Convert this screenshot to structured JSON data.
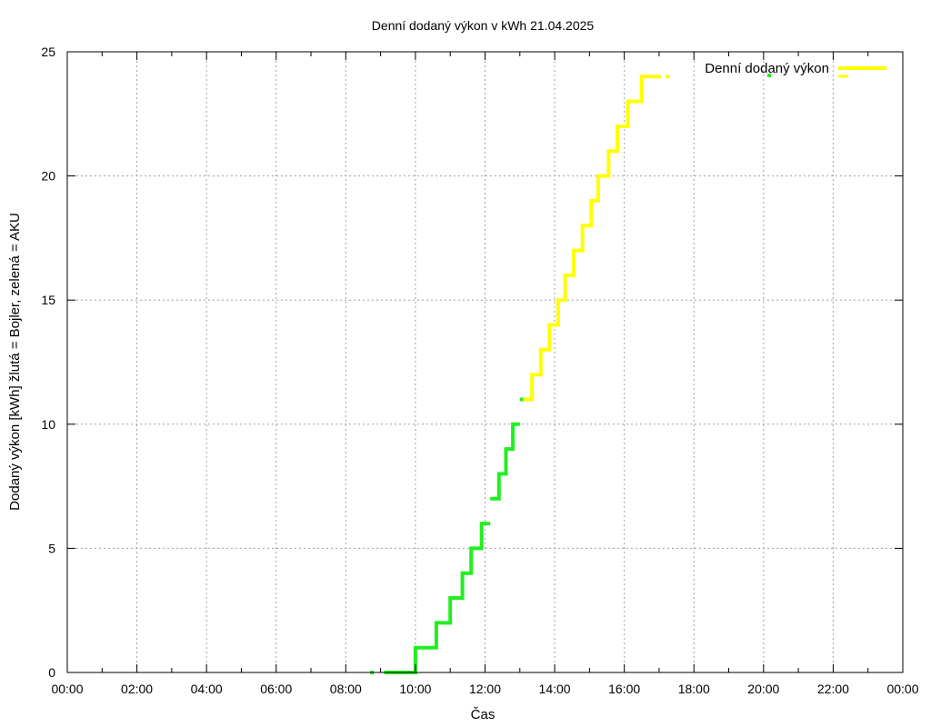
{
  "chart_data": {
    "type": "line",
    "title": "Denní dodaný výkon v kWh 21.04.2025",
    "xlabel": "Čas",
    "ylabel": "Dodaný výkon [kWh]  žlutá = Bojler, zelená = AKU",
    "xlim": [
      0,
      24
    ],
    "ylim": [
      0,
      25
    ],
    "grid": true,
    "legend_position": "top-right",
    "x_tick_labels": [
      "00:00",
      "02:00",
      "04:00",
      "06:00",
      "08:00",
      "10:00",
      "12:00",
      "14:00",
      "16:00",
      "18:00",
      "20:00",
      "22:00",
      "00:00"
    ],
    "y_tick_labels": [
      "0",
      "5",
      "10",
      "15",
      "20",
      "25"
    ],
    "legend": [
      {
        "label": "Denní dodaný výkon",
        "color": "#ffff00"
      }
    ],
    "series": [
      {
        "color": "#22ee22",
        "note_points": [
          [
            8.75,
            0
          ]
        ],
        "x": [
          9.1,
          9.7,
          10.0,
          10.0,
          10.6,
          10.6,
          11.0,
          11.0,
          11.35,
          11.35,
          11.6,
          11.6,
          11.9,
          11.9,
          12.15
        ],
        "y": [
          0,
          0,
          0,
          1,
          1,
          2,
          2,
          3,
          3,
          4,
          4,
          5,
          5,
          6,
          6
        ]
      },
      {
        "color": "#22ee22",
        "x": [
          12.15,
          12.4,
          12.4,
          12.6,
          12.6,
          12.8,
          12.8,
          13.0
        ],
        "y": [
          7,
          7,
          8,
          8,
          9,
          9,
          10,
          10
        ]
      },
      {
        "color": "#22ee22",
        "x": [
          13.0,
          13.1
        ],
        "y": [
          11,
          11
        ]
      },
      {
        "color": "#ffff00",
        "x": [
          13.1,
          13.35,
          13.35,
          13.6,
          13.6,
          13.85,
          13.85,
          14.1,
          14.1,
          14.3,
          14.3,
          14.55,
          14.55,
          14.8,
          14.8,
          15.05,
          15.05,
          15.25,
          15.25,
          15.55,
          15.55,
          15.8,
          15.8,
          16.1,
          16.1,
          16.5,
          16.5,
          16.85
        ],
        "y": [
          11,
          11,
          12,
          12,
          13,
          13,
          14,
          14,
          15,
          15,
          16,
          16,
          17,
          17,
          18,
          18,
          19,
          19,
          20,
          20,
          21,
          21,
          22,
          22,
          23,
          23,
          24,
          24
        ]
      },
      {
        "color": "#ffff00",
        "dashed": true,
        "x": [
          16.85,
          17.3
        ],
        "y": [
          24,
          24
        ]
      }
    ]
  }
}
